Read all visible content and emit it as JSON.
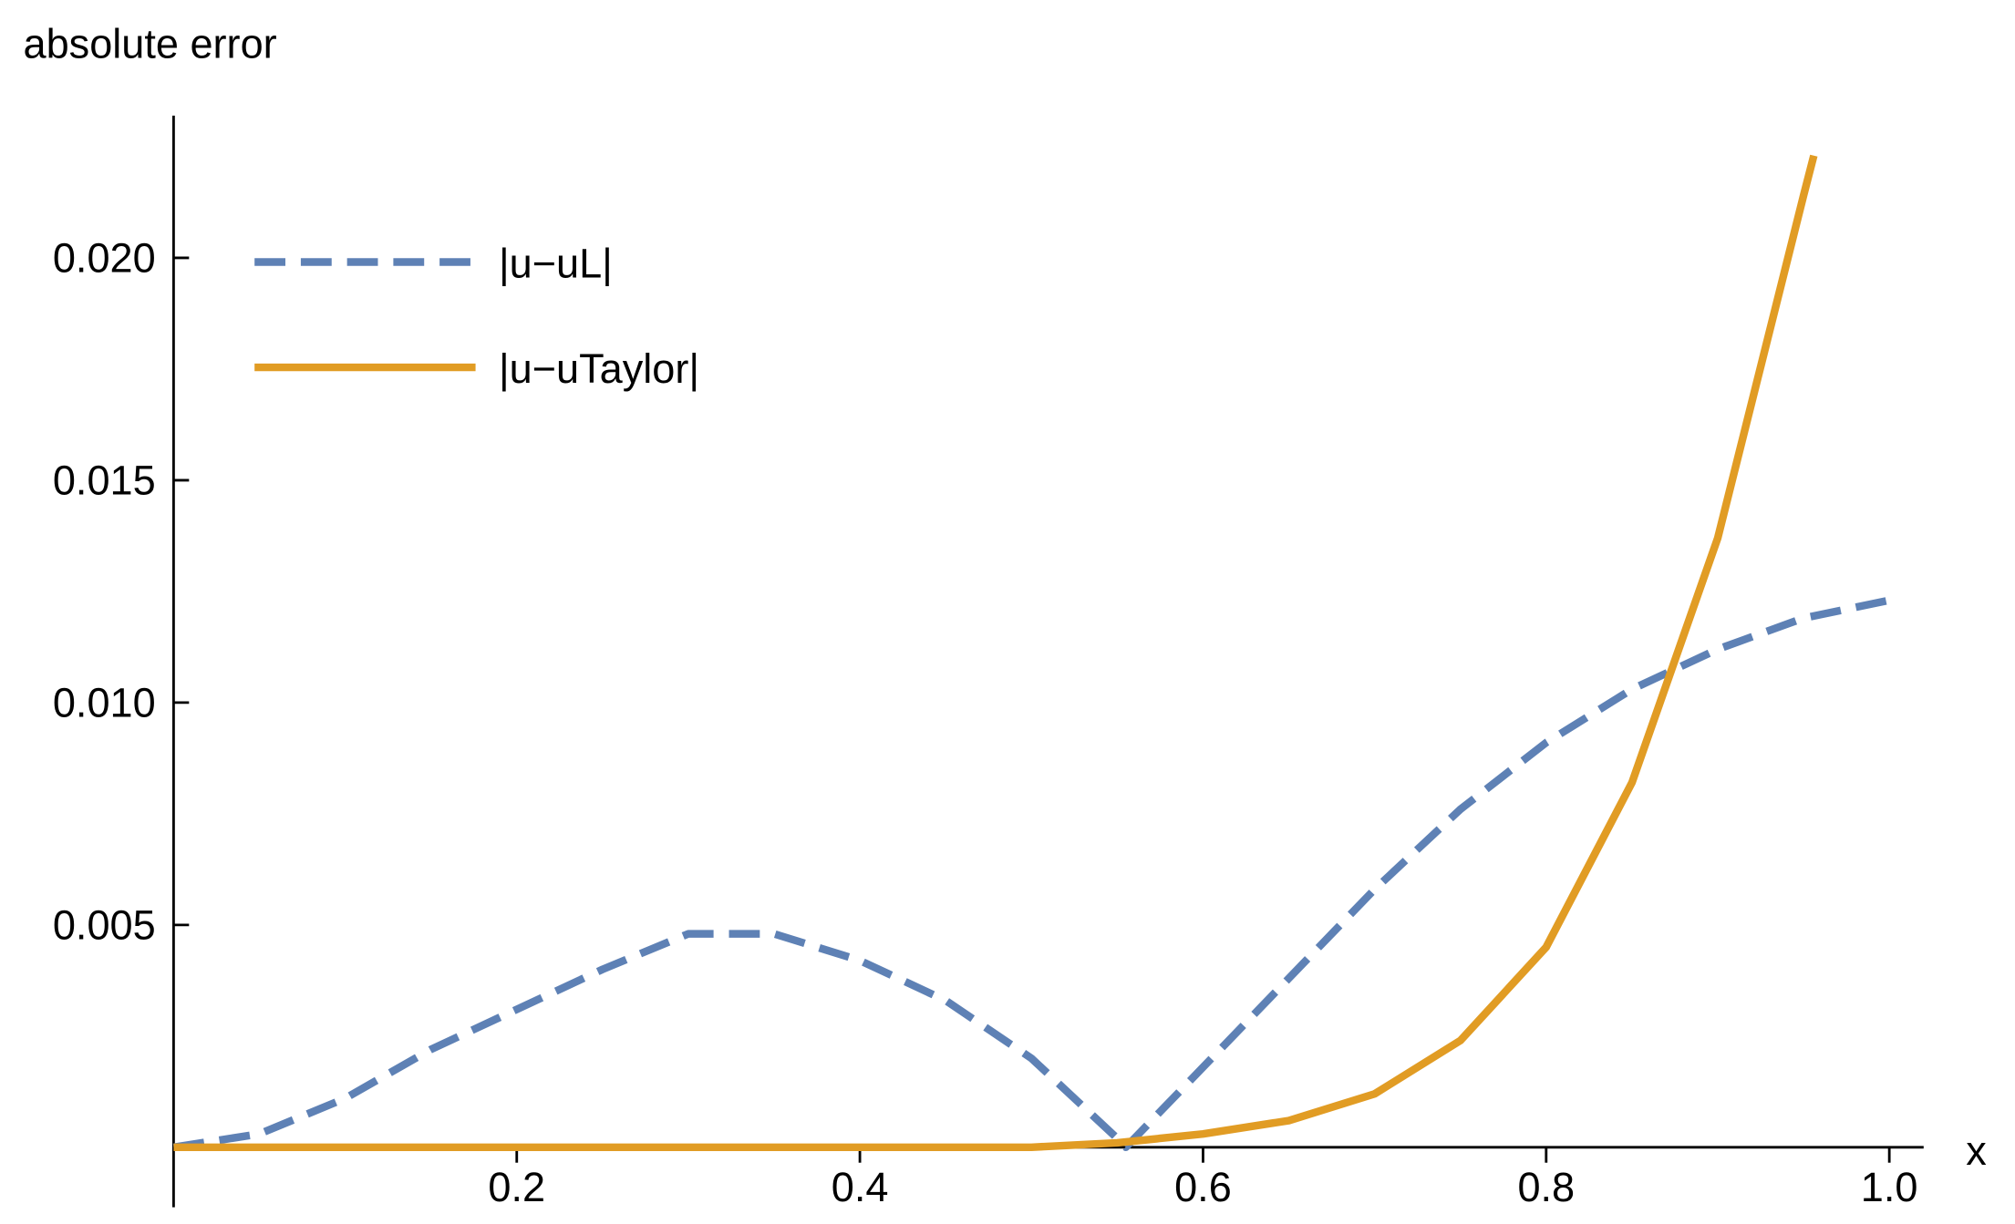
{
  "chart_data": {
    "type": "line",
    "x_label": "x",
    "y_label": "absolute error",
    "xlim": [
      0,
      1.02
    ],
    "ylim": [
      -0.00135,
      0.0232
    ],
    "xticks": [
      0.2,
      0.4,
      0.6,
      0.8,
      {
        "value": 1,
        "label": "1.0"
      }
    ],
    "yticks": [
      0.005,
      {
        "value": 0.01,
        "label": "0.010"
      },
      0.015,
      {
        "value": 0.02,
        "label": "0.020"
      }
    ],
    "legend": "upper left",
    "series": [
      {
        "name": "|u−uL|",
        "color": "#5e81b5",
        "dashed": true,
        "x": [
          0,
          0.05,
          0.1,
          0.15,
          0.2,
          0.25,
          0.3,
          0.35,
          0.4,
          0.45,
          0.5,
          0.55,
          0.555,
          0.6,
          0.65,
          0.7,
          0.75,
          0.8,
          0.85,
          0.9,
          0.95,
          1
        ],
        "values": [
          0,
          0.0003,
          0.0011,
          0.0022,
          0.0031,
          0.004,
          0.0048,
          0.0048,
          0.0042,
          0.0033,
          0.002,
          0.0002,
          0,
          0.0018,
          0.0038,
          0.0058,
          0.0076,
          0.0091,
          0.0103,
          0.0112,
          0.0119,
          0.0123
        ]
      },
      {
        "name": "|u−uTaylor|",
        "color": "#e19c24",
        "dashed": false,
        "x": [
          0,
          0.1,
          0.2,
          0.3,
          0.4,
          0.5,
          0.55,
          0.6,
          0.65,
          0.7,
          0.75,
          0.8,
          0.85,
          0.9,
          0.95,
          0.956
        ],
        "values": [
          0,
          0,
          0,
          0,
          0,
          0,
          0.0001,
          0.0003,
          0.0006,
          0.0012,
          0.0024,
          0.0045,
          0.0082,
          0.0137,
          0.0214,
          0.0223
        ]
      }
    ]
  }
}
